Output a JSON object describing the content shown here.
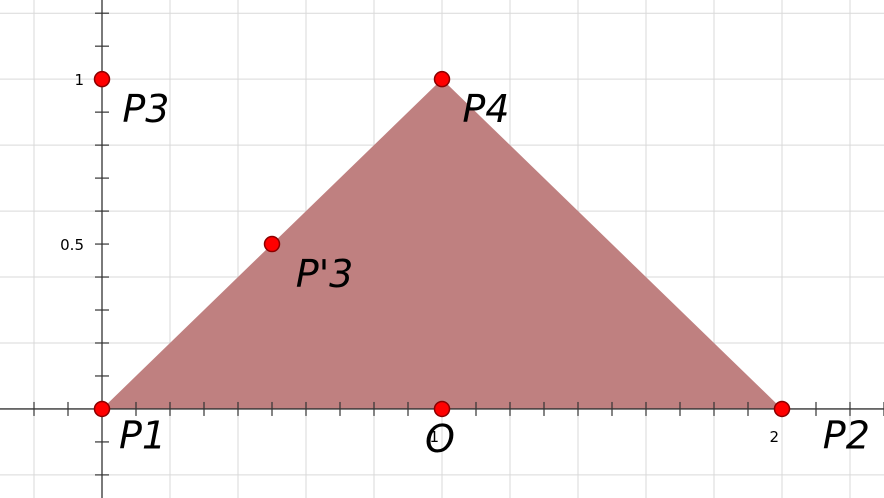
{
  "chart_data": {
    "type": "scatter",
    "xlim": [
      -0.3,
      2.3
    ],
    "ylim": [
      -0.27,
      1.24
    ],
    "grid": true,
    "grid_spacing": 0.2,
    "minor_tick_spacing": 0.1,
    "x_tick_labels": [
      {
        "value": 1,
        "label": "1"
      },
      {
        "value": 2,
        "label": "2"
      }
    ],
    "y_tick_labels": [
      {
        "value": 0.5,
        "label": "0.5"
      },
      {
        "value": 1,
        "label": "1"
      }
    ],
    "polygon": {
      "vertices": [
        [
          0,
          0
        ],
        [
          1,
          1
        ],
        [
          2,
          0
        ]
      ],
      "fill": "#bf8080"
    },
    "points": [
      {
        "name": "P1",
        "x": 0,
        "y": 0,
        "label_dx": 0.05,
        "label_dy": -0.12
      },
      {
        "name": "P2",
        "x": 2,
        "y": 0,
        "label_dx": 0.12,
        "label_dy": -0.12
      },
      {
        "name": "P3",
        "x": 0,
        "y": 1,
        "label_dx": 0.06,
        "label_dy": -0.13
      },
      {
        "name": "P4",
        "x": 1,
        "y": 1,
        "label_dx": 0.06,
        "label_dy": -0.13
      },
      {
        "name": "P'3",
        "x": 0.5,
        "y": 0.5,
        "label_dx": 0.07,
        "label_dy": -0.13
      },
      {
        "name": "O",
        "x": 1,
        "y": 0,
        "label_dx": -0.05,
        "label_dy": -0.13
      }
    ]
  },
  "colors": {
    "grid": "#d9d9d9",
    "axis": "#333333",
    "point_fill": "#ff0000",
    "point_stroke": "#8b0000"
  }
}
